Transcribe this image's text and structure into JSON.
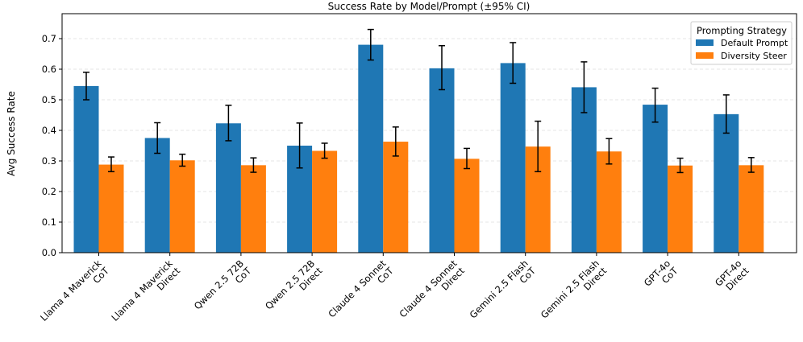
{
  "chart_data": {
    "type": "bar",
    "title": "Success Rate by Model/Prompt (±95% CI)",
    "xlabel": "",
    "ylabel": "Avg Success Rate",
    "ylim": [
      0,
      0.77
    ],
    "yticks": [
      "0.0",
      "0.1",
      "0.2",
      "0.3",
      "0.4",
      "0.5",
      "0.6",
      "0.7"
    ],
    "grid": "y-dashed",
    "legend": {
      "title": "Prompting Strategy",
      "position": "top-right"
    },
    "categories": [
      [
        "Llama 4 Maverick",
        "CoT"
      ],
      [
        "Llama 4 Maverick",
        "Direct"
      ],
      [
        "Qwen 2.5 72B",
        "CoT"
      ],
      [
        "Qwen 2.5 72B",
        "Direct"
      ],
      [
        "Claude 4 Sonnet",
        "CoT"
      ],
      [
        "Claude 4 Sonnet",
        "Direct"
      ],
      [
        "Gemini 2.5 Flash",
        "CoT"
      ],
      [
        "Gemini 2.5 Flash",
        "Direct"
      ],
      [
        "GPT-4o",
        "CoT"
      ],
      [
        "GPT-4o",
        "Direct"
      ]
    ],
    "series": [
      {
        "name": "Default Prompt",
        "color": "#1f77b4",
        "values": [
          0.545,
          0.375,
          0.423,
          0.35,
          0.68,
          0.603,
          0.62,
          0.541,
          0.484,
          0.453
        ],
        "ci_low": [
          0.5,
          0.325,
          0.366,
          0.277,
          0.63,
          0.533,
          0.554,
          0.458,
          0.427,
          0.391
        ],
        "ci_high": [
          0.59,
          0.425,
          0.482,
          0.424,
          0.73,
          0.677,
          0.687,
          0.624,
          0.538,
          0.516
        ]
      },
      {
        "name": "Diversity Steer",
        "color": "#ff7f0e",
        "values": [
          0.288,
          0.302,
          0.286,
          0.333,
          0.363,
          0.307,
          0.347,
          0.331,
          0.285,
          0.286
        ],
        "ci_low": [
          0.265,
          0.283,
          0.263,
          0.309,
          0.316,
          0.275,
          0.265,
          0.29,
          0.262,
          0.263
        ],
        "ci_high": [
          0.313,
          0.322,
          0.31,
          0.358,
          0.411,
          0.341,
          0.43,
          0.373,
          0.309,
          0.311
        ]
      }
    ]
  }
}
